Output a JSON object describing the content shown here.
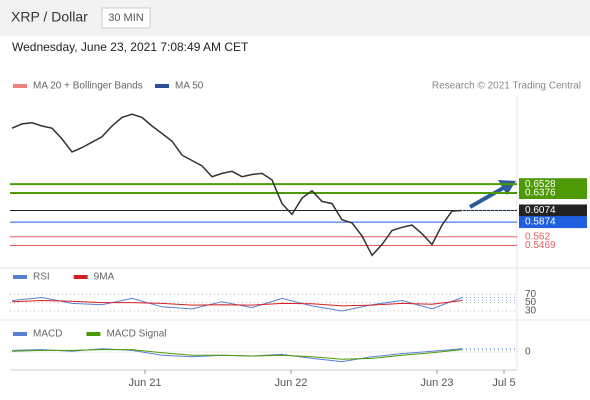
{
  "header": {
    "title": "XRP / Dollar",
    "interval": "30 MIN",
    "timestamp": "Wednesday, June 23, 2021 7:08:49 AM CET",
    "legend": [
      "MA 20 + Bollinger Bands",
      "MA 50"
    ],
    "credit": "Research © 2021 Trading Central"
  },
  "chart_data": [
    {
      "type": "line",
      "name": "price",
      "x": [
        0,
        1,
        2,
        3,
        4,
        5,
        6,
        7,
        8,
        9,
        10,
        11,
        12,
        13,
        14,
        15,
        16,
        17,
        18,
        19,
        20,
        21,
        22,
        23,
        24,
        25,
        26,
        27,
        28,
        29,
        30,
        31,
        32,
        33,
        34,
        35,
        36,
        37,
        38,
        39,
        40,
        41,
        42,
        43,
        44,
        45
      ],
      "values": [
        0.7495,
        0.7569,
        0.7588,
        0.7532,
        0.7495,
        0.7309,
        0.7086,
        0.716,
        0.7253,
        0.7346,
        0.7532,
        0.7681,
        0.7736,
        0.7681,
        0.7532,
        0.7402,
        0.7272,
        0.703,
        0.6937,
        0.6844,
        0.6658,
        0.6714,
        0.6751,
        0.6658,
        0.6695,
        0.6714,
        0.6602,
        0.6193,
        0.6007,
        0.6286,
        0.6416,
        0.6231,
        0.6193,
        0.5915,
        0.5859,
        0.5636,
        0.5301,
        0.5487,
        0.5729,
        0.5784,
        0.5822,
        0.5673,
        0.5487,
        0.5822,
        0.6063,
        0.6074
      ],
      "color": "#333333",
      "xlim": [
        -0.2,
        50.5
      ],
      "ylim": [
        0.5116,
        0.805
      ],
      "xticks": [
        {
          "value": 13.3,
          "label": "Jun 21"
        },
        {
          "value": 27.9,
          "label": "Jun 22"
        },
        {
          "value": 42.5,
          "label": "Jun 23"
        },
        {
          "value": 49.2,
          "label": "Jul 5"
        }
      ],
      "levels": [
        {
          "value": 0.6528,
          "color": "#4d9a06"
        },
        {
          "value": 0.6376,
          "color": "#4d9a06"
        },
        {
          "value": 0.6074,
          "color": "#222222"
        },
        {
          "value": 0.5874,
          "color": "#1f5fe0"
        },
        {
          "value": 0.562,
          "color": "#e06060"
        },
        {
          "value": 0.5469,
          "color": "#e06060"
        }
      ]
    },
    {
      "type": "line",
      "name": "rsi",
      "x": [
        0,
        3,
        6,
        9,
        12,
        15,
        18,
        21,
        24,
        27,
        30,
        33,
        36,
        39,
        42,
        45
      ],
      "series": [
        {
          "name": "RSI",
          "color": "#5b7fd6",
          "values": [
            55,
            62,
            48,
            45,
            60,
            40,
            35,
            52,
            38,
            60,
            42,
            30,
            45,
            55,
            35,
            62
          ]
        },
        {
          "name": "9MA",
          "color": "#d62020",
          "values": [
            52,
            55,
            53,
            50,
            50,
            48,
            44,
            45,
            44,
            48,
            47,
            42,
            44,
            48,
            46,
            55
          ]
        }
      ],
      "ylim": [
        18,
        80
      ],
      "yticks": [
        70,
        50,
        30
      ]
    },
    {
      "type": "line",
      "name": "macd",
      "x": [
        0,
        3,
        6,
        9,
        12,
        15,
        18,
        21,
        24,
        27,
        30,
        33,
        36,
        39,
        42,
        45
      ],
      "series": [
        {
          "name": "MACD",
          "color": "#5b7fd6",
          "values": [
            0.002,
            0.003,
            0.001,
            0.004,
            0.002,
            -0.004,
            -0.006,
            -0.004,
            -0.005,
            -0.003,
            -0.008,
            -0.012,
            -0.006,
            -0.002,
            0.001,
            0.004
          ]
        },
        {
          "name": "MACD Signal",
          "color": "#4d9a06",
          "values": [
            0.001,
            0.002,
            0.002,
            0.003,
            0.003,
            -0.001,
            -0.004,
            -0.004,
            -0.005,
            -0.004,
            -0.006,
            -0.009,
            -0.008,
            -0.004,
            -0.001,
            0.003
          ]
        }
      ],
      "ylim": [
        -0.02,
        0.015
      ],
      "yticks": [
        0
      ]
    }
  ]
}
